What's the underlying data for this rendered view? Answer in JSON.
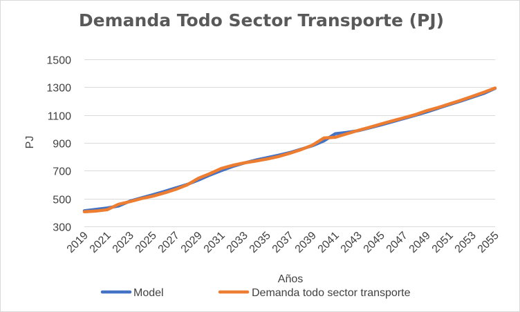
{
  "chart_data": {
    "type": "line",
    "title": "Demanda Todo Sector Transporte (PJ)",
    "xlabel": "Años",
    "ylabel": "PJ",
    "ylim": [
      300,
      1500
    ],
    "yticks": [
      300,
      500,
      700,
      900,
      1100,
      1300,
      1500
    ],
    "x": [
      2019,
      2020,
      2021,
      2022,
      2023,
      2024,
      2025,
      2026,
      2027,
      2028,
      2029,
      2030,
      2031,
      2032,
      2033,
      2034,
      2035,
      2036,
      2037,
      2038,
      2039,
      2040,
      2041,
      2042,
      2043,
      2044,
      2045,
      2046,
      2047,
      2048,
      2049,
      2050,
      2051,
      2052,
      2053,
      2054,
      2055
    ],
    "xtick_labels": [
      "2019",
      "2021",
      "2023",
      "2025",
      "2027",
      "2029",
      "2031",
      "2033",
      "2035",
      "2037",
      "2039",
      "2041",
      "2043",
      "2045",
      "2047",
      "2049",
      "2051",
      "2053",
      "2055"
    ],
    "grid": true,
    "legend": "bottom",
    "series": [
      {
        "name": "Model",
        "color": "#4472c4",
        "values": [
          412,
          422,
          432,
          447,
          482,
          505,
          527,
          551,
          576,
          601,
          633,
          669,
          701,
          731,
          755,
          776,
          794,
          811,
          830,
          855,
          880,
          915,
          966,
          975,
          988,
          1008,
          1029,
          1052,
          1075,
          1098,
          1122,
          1149,
          1175,
          1201,
          1228,
          1255,
          1292
        ]
      },
      {
        "name": "Demanda todo sector transporte",
        "color": "#ed7d31",
        "values": [
          405,
          410,
          420,
          459,
          478,
          500,
          517,
          540,
          566,
          598,
          646,
          679,
          716,
          739,
          756,
          769,
          784,
          802,
          825,
          852,
          884,
          935,
          940,
          965,
          990,
          1012,
          1036,
          1058,
          1080,
          1103,
          1131,
          1154,
          1180,
          1206,
          1234,
          1263,
          1294
        ]
      }
    ]
  }
}
